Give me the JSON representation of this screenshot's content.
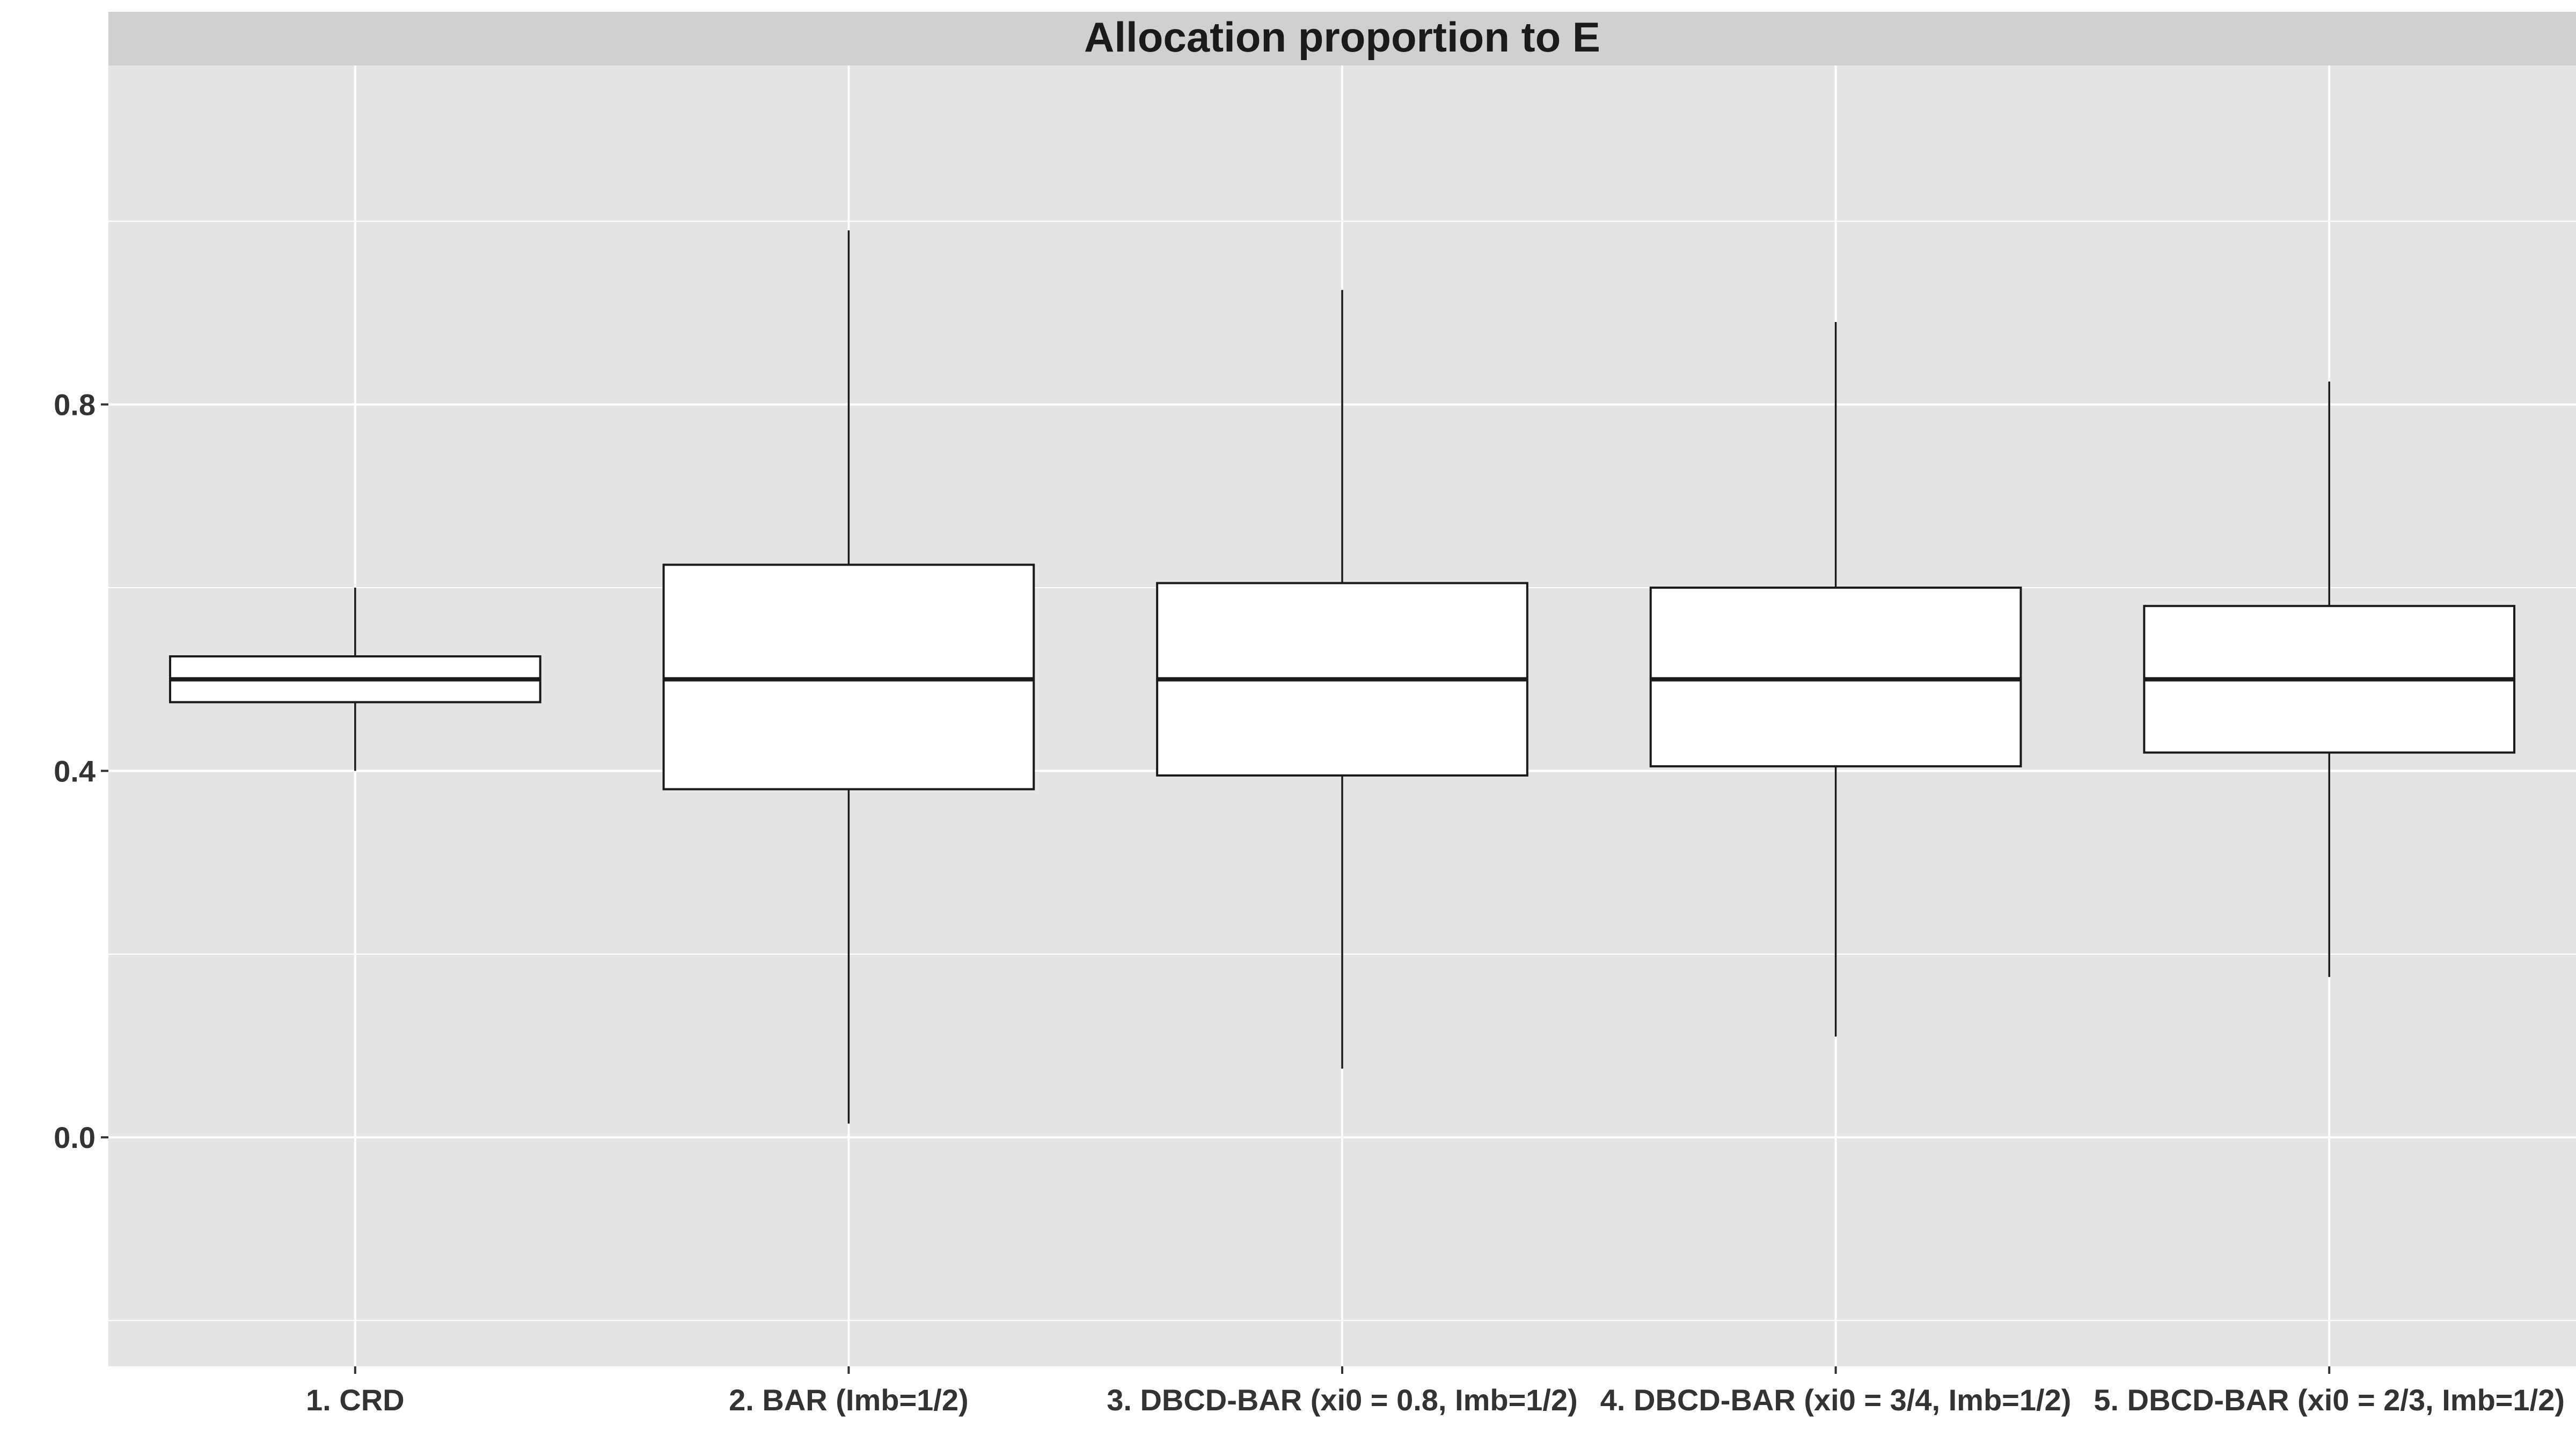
{
  "chart_data": {
    "type": "box",
    "title": "Allocation proportion to E",
    "xlabel": "",
    "ylabel": "",
    "ylim": [
      -0.25,
      1.17
    ],
    "y_ticks": [
      0.0,
      0.4,
      0.8
    ],
    "y_tick_labels": [
      "0.0",
      "0.4",
      "0.8"
    ],
    "grid": true,
    "categories": [
      "1. CRD",
      "2. BAR (Imb=1/2)",
      "3. DBCD-BAR (xi0 = 0.8, Imb=1/2)",
      "4. DBCD-BAR (xi0 = 3/4, Imb=1/2)",
      "5. DBCD-BAR (xi0 = 2/3, Imb=1/2)"
    ],
    "boxes": [
      {
        "whisker_low": 0.4,
        "q1": 0.475,
        "median": 0.5,
        "q3": 0.525,
        "whisker_high": 0.6
      },
      {
        "whisker_low": 0.015,
        "q1": 0.38,
        "median": 0.5,
        "q3": 0.625,
        "whisker_high": 0.99
      },
      {
        "whisker_low": 0.075,
        "q1": 0.395,
        "median": 0.5,
        "q3": 0.605,
        "whisker_high": 0.925
      },
      {
        "whisker_low": 0.11,
        "q1": 0.405,
        "median": 0.5,
        "q3": 0.6,
        "whisker_high": 0.89
      },
      {
        "whisker_low": 0.175,
        "q1": 0.42,
        "median": 0.5,
        "q3": 0.58,
        "whisker_high": 0.825
      }
    ],
    "colors": {
      "panel_background": "#e5e5e5",
      "strip_background": "#d0d0d0",
      "grid": "#ffffff",
      "box_fill": "#ffffff",
      "box_line": "#1a1a1a"
    }
  }
}
